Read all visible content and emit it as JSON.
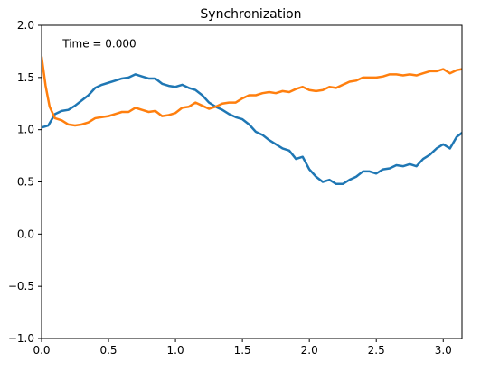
{
  "chart_data": {
    "type": "line",
    "title": "Synchronization",
    "xlabel": "",
    "ylabel": "",
    "xlim": [
      0,
      3.14
    ],
    "ylim": [
      -1.0,
      2.0
    ],
    "xticks": [
      0.0,
      0.5,
      1.0,
      1.5,
      2.0,
      2.5,
      3.0
    ],
    "xtick_labels": [
      "0.0",
      "0.5",
      "1.0",
      "1.5",
      "2.0",
      "2.5",
      "3.0"
    ],
    "yticks": [
      -1.0,
      -0.5,
      0.0,
      0.5,
      1.0,
      1.5,
      2.0
    ],
    "ytick_labels": [
      "−1.0",
      "−0.5",
      "0.0",
      "0.5",
      "1.0",
      "1.5",
      "2.0"
    ],
    "grid": false,
    "annotation": "Time = 0.000",
    "series": [
      {
        "color": "#1f77b4",
        "x": [
          0.0,
          0.05,
          0.1,
          0.15,
          0.2,
          0.25,
          0.3,
          0.35,
          0.4,
          0.45,
          0.5,
          0.55,
          0.6,
          0.65,
          0.7,
          0.75,
          0.8,
          0.85,
          0.9,
          0.95,
          1.0,
          1.05,
          1.1,
          1.15,
          1.2,
          1.25,
          1.3,
          1.35,
          1.4,
          1.45,
          1.5,
          1.55,
          1.6,
          1.65,
          1.7,
          1.75,
          1.8,
          1.85,
          1.9,
          1.95,
          2.0,
          2.05,
          2.1,
          2.15,
          2.2,
          2.25,
          2.3,
          2.35,
          2.4,
          2.45,
          2.5,
          2.55,
          2.6,
          2.65,
          2.7,
          2.75,
          2.8,
          2.85,
          2.9,
          2.95,
          3.0,
          3.05,
          3.1,
          3.14
        ],
        "y": [
          1.02,
          1.04,
          1.15,
          1.18,
          1.19,
          1.23,
          1.28,
          1.33,
          1.4,
          1.43,
          1.45,
          1.47,
          1.49,
          1.5,
          1.53,
          1.51,
          1.49,
          1.49,
          1.44,
          1.42,
          1.41,
          1.43,
          1.4,
          1.38,
          1.33,
          1.26,
          1.22,
          1.19,
          1.15,
          1.12,
          1.1,
          1.05,
          0.98,
          0.95,
          0.9,
          0.86,
          0.82,
          0.8,
          0.72,
          0.74,
          0.62,
          0.55,
          0.5,
          0.52,
          0.48,
          0.48,
          0.52,
          0.55,
          0.6,
          0.6,
          0.58,
          0.62,
          0.63,
          0.66,
          0.65,
          0.67,
          0.65,
          0.72,
          0.76,
          0.82,
          0.86,
          0.82,
          0.93,
          0.97
        ]
      },
      {
        "color": "#ff7f0e",
        "x": [
          0.0,
          0.03,
          0.06,
          0.1,
          0.15,
          0.2,
          0.25,
          0.3,
          0.35,
          0.4,
          0.45,
          0.5,
          0.55,
          0.6,
          0.65,
          0.7,
          0.75,
          0.8,
          0.85,
          0.9,
          0.95,
          1.0,
          1.05,
          1.1,
          1.15,
          1.2,
          1.25,
          1.3,
          1.35,
          1.4,
          1.45,
          1.5,
          1.55,
          1.6,
          1.65,
          1.7,
          1.75,
          1.8,
          1.85,
          1.9,
          1.95,
          2.0,
          2.05,
          2.1,
          2.15,
          2.2,
          2.25,
          2.3,
          2.35,
          2.4,
          2.45,
          2.5,
          2.55,
          2.6,
          2.65,
          2.7,
          2.75,
          2.8,
          2.85,
          2.9,
          2.95,
          3.0,
          3.05,
          3.1,
          3.14
        ],
        "y": [
          1.7,
          1.42,
          1.22,
          1.11,
          1.09,
          1.05,
          1.04,
          1.05,
          1.07,
          1.11,
          1.12,
          1.13,
          1.15,
          1.17,
          1.17,
          1.21,
          1.19,
          1.17,
          1.18,
          1.13,
          1.14,
          1.16,
          1.21,
          1.22,
          1.26,
          1.23,
          1.2,
          1.22,
          1.25,
          1.26,
          1.26,
          1.3,
          1.33,
          1.33,
          1.35,
          1.36,
          1.35,
          1.37,
          1.36,
          1.39,
          1.41,
          1.38,
          1.37,
          1.38,
          1.41,
          1.4,
          1.43,
          1.46,
          1.47,
          1.5,
          1.5,
          1.5,
          1.51,
          1.53,
          1.53,
          1.52,
          1.53,
          1.52,
          1.54,
          1.56,
          1.56,
          1.58,
          1.54,
          1.57,
          1.58
        ]
      }
    ]
  }
}
